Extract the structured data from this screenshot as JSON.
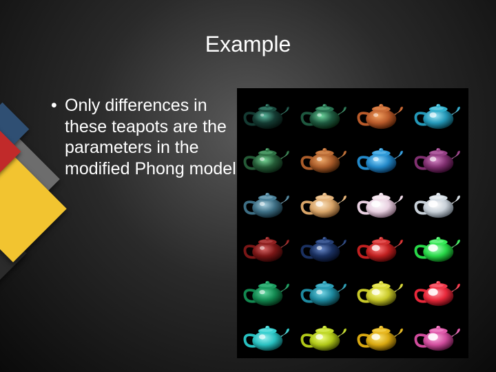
{
  "slide": {
    "title": "Example",
    "bullet": "Only differences in these teapots are the parameters in the modified Phong model"
  },
  "grid": {
    "type": "infographic",
    "rows": 6,
    "cols": 4,
    "background_color": "#000000",
    "cells": [
      [
        {
          "body": "#143a32",
          "hilite": "#5ab89e",
          "shadow": "#051410",
          "lid": "#1a4a3e",
          "spec": 0.15
        },
        {
          "body": "#1e583f",
          "hilite": "#6fd8a0",
          "shadow": "#07200f",
          "lid": "#287050",
          "spec": 0.25
        },
        {
          "body": "#b85a2a",
          "hilite": "#f2a060",
          "shadow": "#4a1e08",
          "lid": "#c86c38",
          "spec": 0.3
        },
        {
          "body": "#2498b8",
          "hilite": "#9fe8f8",
          "shadow": "#083843",
          "lid": "#32b0cc",
          "spec": 0.55
        }
      ],
      [
        {
          "body": "#245a36",
          "hilite": "#78d898",
          "shadow": "#0a2212",
          "lid": "#2e7044",
          "spec": 0.3
        },
        {
          "body": "#aa5c2a",
          "hilite": "#eea868",
          "shadow": "#3e1e08",
          "lid": "#bb6c36",
          "spec": 0.35
        },
        {
          "body": "#2288c8",
          "hilite": "#8fd8ff",
          "shadow": "#083050",
          "lid": "#309ad8",
          "spec": 0.4
        },
        {
          "body": "#803070",
          "hilite": "#d888c8",
          "shadow": "#300a28",
          "lid": "#944084",
          "spec": 0.5
        }
      ],
      [
        {
          "body": "#3d6e84",
          "hilite": "#a8d0e0",
          "shadow": "#122832",
          "lid": "#4a8098",
          "spec": 0.35
        },
        {
          "body": "#d8a468",
          "hilite": "#fce4c0",
          "shadow": "#604020",
          "lid": "#e4b47c",
          "spec": 0.6
        },
        {
          "body": "#e8d0e0",
          "hilite": "#ffffff",
          "shadow": "#705868",
          "lid": "#f0dce8",
          "spec": 0.8
        },
        {
          "body": "#c8d0d8",
          "hilite": "#ffffff",
          "shadow": "#586068",
          "lid": "#d4dce4",
          "spec": 0.85
        }
      ],
      [
        {
          "body": "#7a1616",
          "hilite": "#d86868",
          "shadow": "#2c0404",
          "lid": "#8e2020",
          "spec": 0.3
        },
        {
          "body": "#1a3060",
          "hilite": "#6888c8",
          "shadow": "#060e22",
          "lid": "#243e74",
          "spec": 0.35
        },
        {
          "body": "#c02020",
          "hilite": "#ff8080",
          "shadow": "#480606",
          "lid": "#d03030",
          "spec": 0.7
        },
        {
          "body": "#28d848",
          "hilite": "#b0ffc0",
          "shadow": "#085012",
          "lid": "#38e858",
          "spec": 0.9
        }
      ],
      [
        {
          "body": "#128850",
          "hilite": "#60d8a0",
          "shadow": "#043018",
          "lid": "#1c9c60",
          "spec": 0.4
        },
        {
          "body": "#1e8aa0",
          "hilite": "#78d8e8",
          "shadow": "#083238",
          "lid": "#2a9cb4",
          "spec": 0.45
        },
        {
          "body": "#c8c828",
          "hilite": "#ffff98",
          "shadow": "#484808",
          "lid": "#d8d838",
          "spec": 0.7
        },
        {
          "body": "#e8283a",
          "hilite": "#ff98a4",
          "shadow": "#580810",
          "lid": "#f0384a",
          "spec": 0.9
        }
      ],
      [
        {
          "body": "#28c0c0",
          "hilite": "#98f0f0",
          "shadow": "#084848",
          "lid": "#38d0d0",
          "spec": 0.5
        },
        {
          "body": "#b0c818",
          "hilite": "#f0ff80",
          "shadow": "#404a04",
          "lid": "#c0d828",
          "spec": 0.6
        },
        {
          "body": "#d8a810",
          "hilite": "#ffe878",
          "shadow": "#503c02",
          "lid": "#e8b820",
          "spec": 0.75
        },
        {
          "body": "#d04c9c",
          "hilite": "#ffb0e0",
          "shadow": "#501438",
          "lid": "#e05cac",
          "spec": 0.92
        }
      ]
    ]
  },
  "accent_colors": {
    "gray": "#6d6d6d",
    "blue": "#2f4f73",
    "red": "#c12a2a",
    "yellow": "#f2c430",
    "dark": "#2b2b2b"
  }
}
